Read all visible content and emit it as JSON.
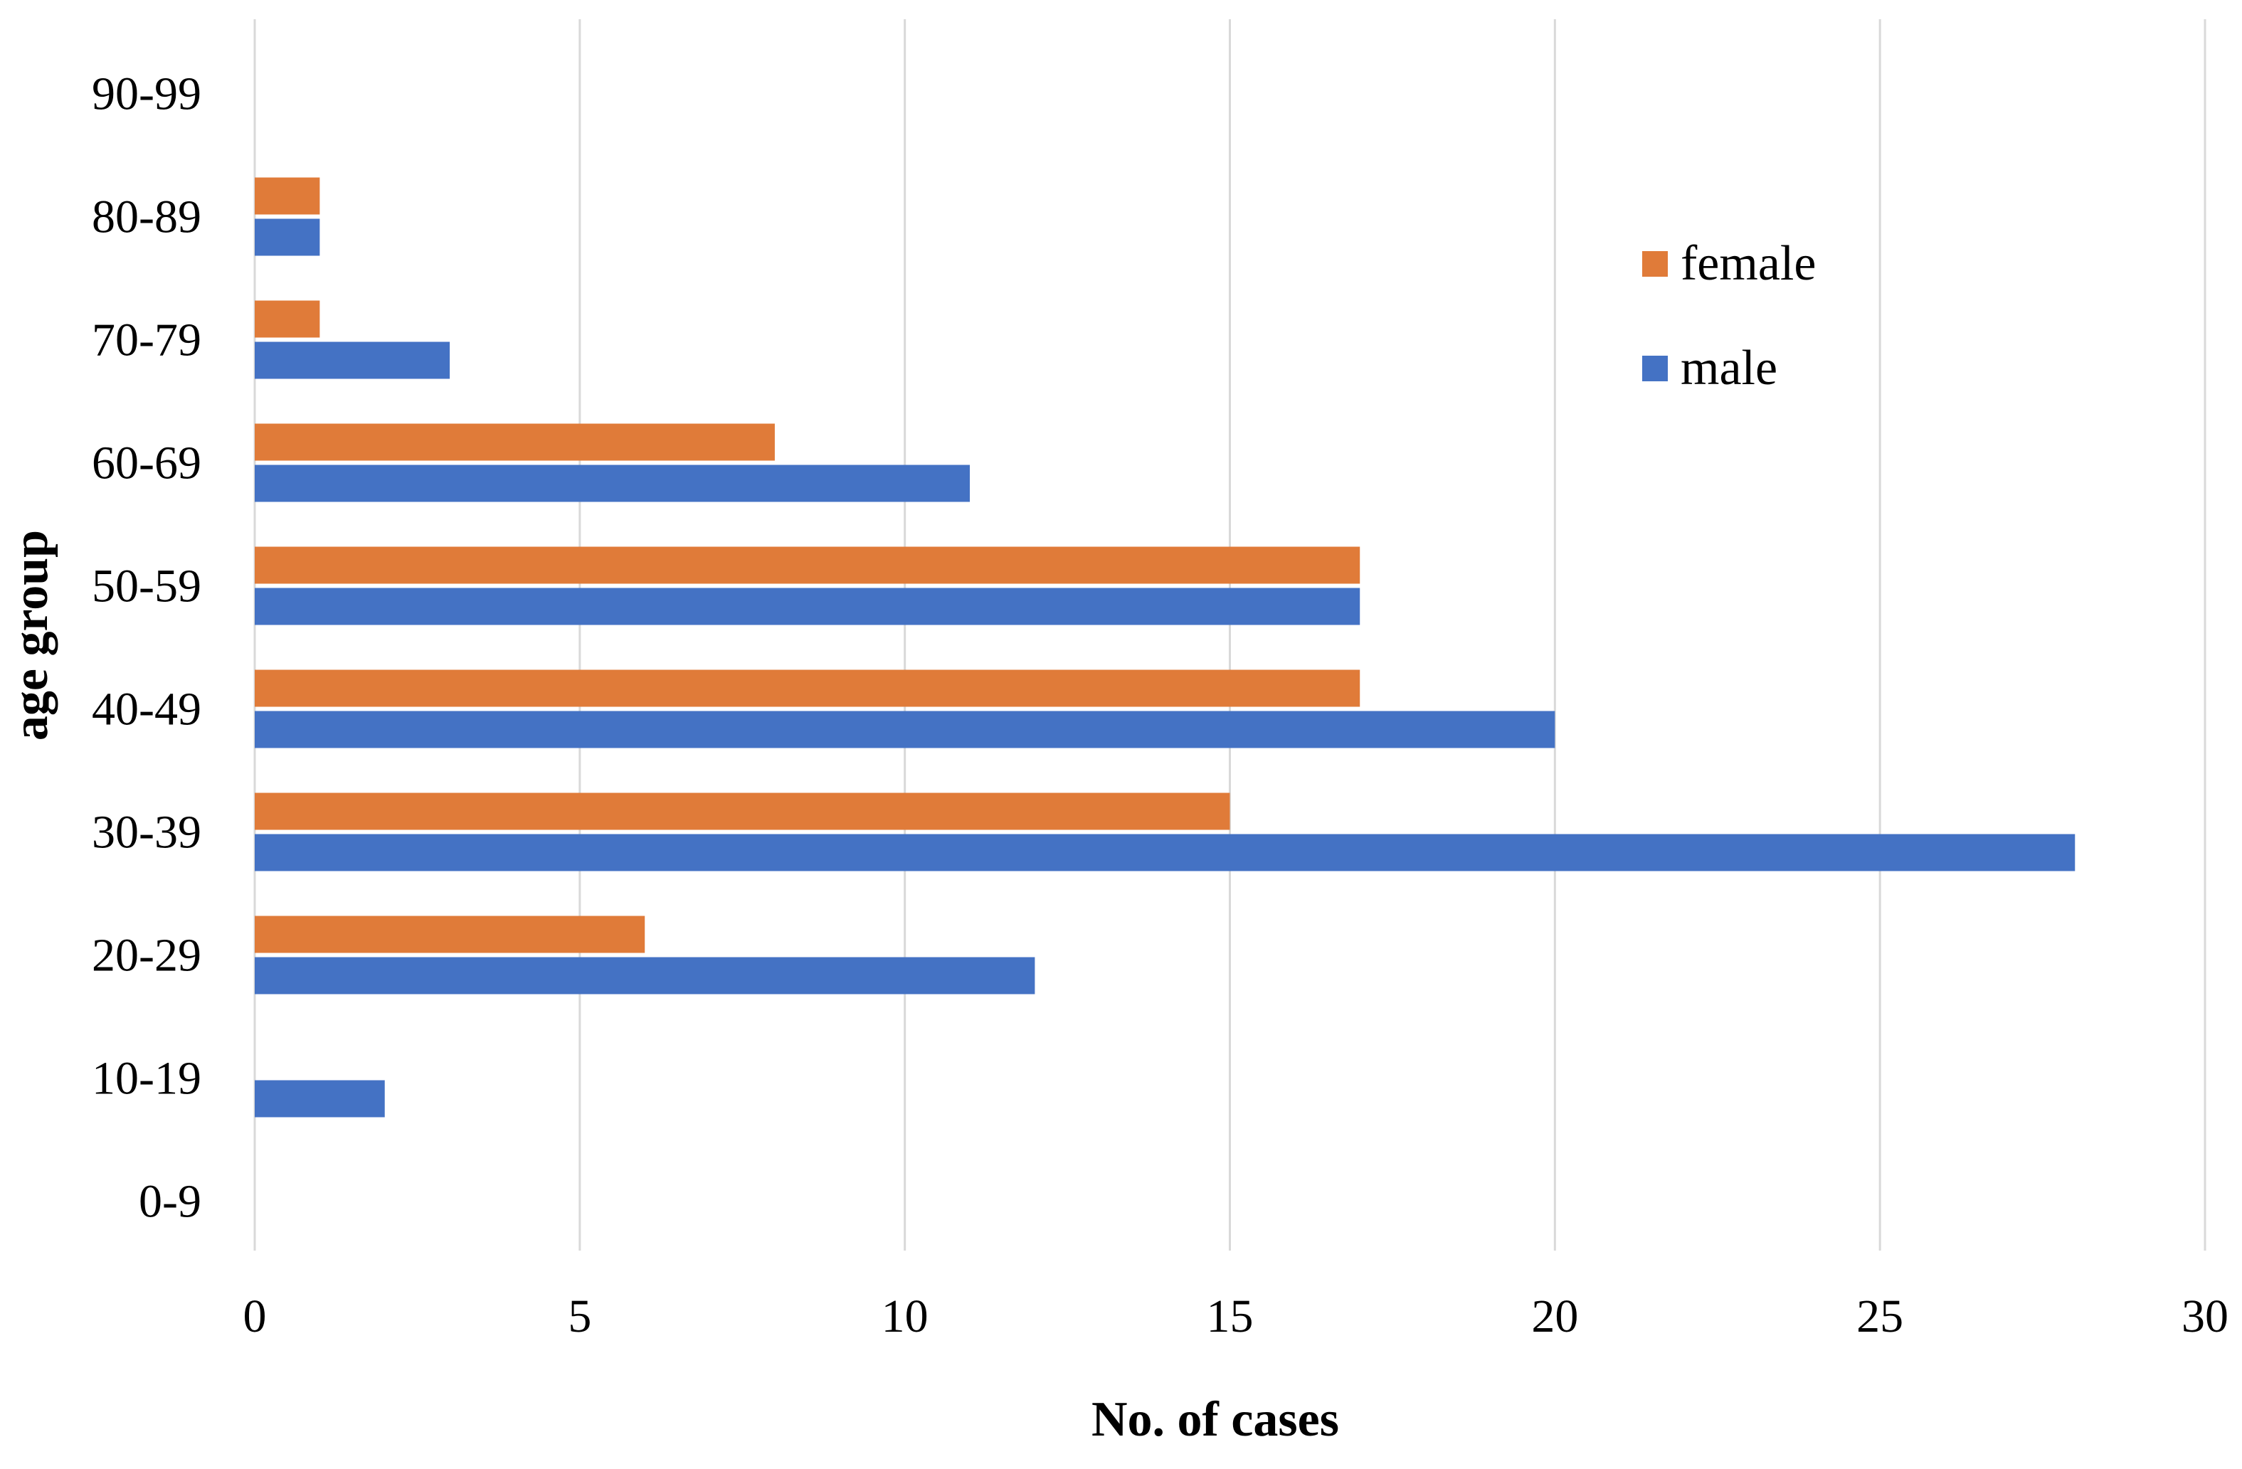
{
  "chart_data": {
    "type": "bar",
    "orientation": "horizontal",
    "title": "",
    "xlabel": "No. of cases",
    "ylabel": "age group",
    "xlim": [
      0,
      30
    ],
    "x_ticks": [
      0,
      5,
      10,
      15,
      20,
      25,
      30
    ],
    "grid": "vertical",
    "legend_position": "upper-right",
    "categories": [
      "0-9",
      "10-19",
      "20-29",
      "30-39",
      "40-49",
      "50-59",
      "60-69",
      "70-79",
      "80-89",
      "90-99"
    ],
    "series": [
      {
        "name": "female",
        "color": "#e07b39",
        "values": [
          0,
          0,
          6,
          15,
          17,
          17,
          8,
          1,
          1,
          0
        ]
      },
      {
        "name": "male",
        "color": "#4472c4",
        "values": [
          0,
          2,
          12,
          28,
          20,
          17,
          11,
          3,
          1,
          0
        ]
      }
    ]
  }
}
